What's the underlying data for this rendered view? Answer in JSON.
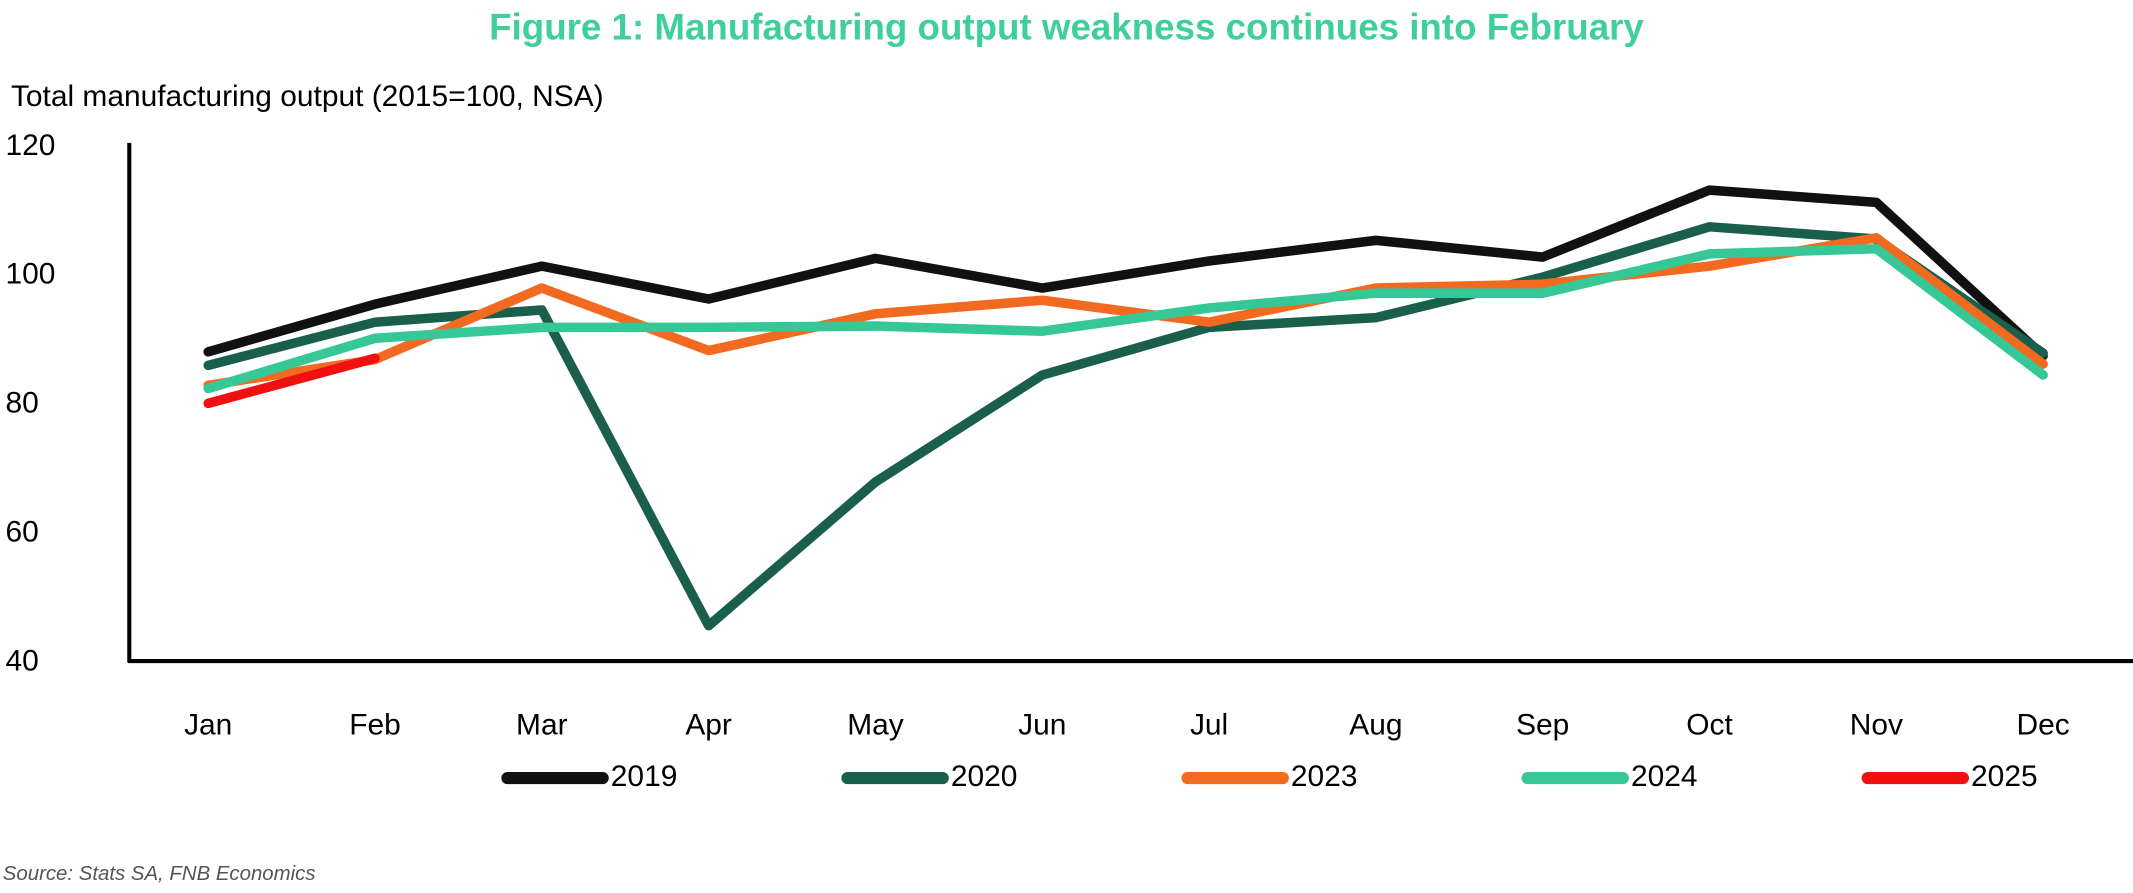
{
  "chart_data": {
    "type": "line",
    "title": "Figure 1: Manufacturing output weakness continues into February",
    "y_label": "Total manufacturing output (2015=100, NSA)",
    "source": "Source: Stats SA, FNB Economics",
    "categories": [
      "Jan",
      "Feb",
      "Mar",
      "Apr",
      "May",
      "Jun",
      "Jul",
      "Aug",
      "Sep",
      "Oct",
      "Nov",
      "Dec"
    ],
    "series": [
      {
        "name": "2019",
        "color": "#111111",
        "values": [
          88.2,
          95.6,
          101.5,
          96.4,
          102.7,
          98.1,
          102.3,
          105.5,
          102.9,
          113.3,
          111.4,
          87.6
        ]
      },
      {
        "name": "2020",
        "color": "#1a5e4c",
        "values": [
          86.1,
          92.8,
          94.7,
          45.7,
          68,
          84.6,
          92,
          93.5,
          99.8,
          107.6,
          105.7,
          88
        ]
      },
      {
        "name": "2023",
        "color": "#f26a1f",
        "values": [
          83,
          87,
          98.1,
          88.4,
          94.1,
          96.2,
          92.8,
          98.1,
          98.7,
          101.5,
          105.9,
          86.3
        ]
      },
      {
        "name": "2024",
        "color": "#35c896",
        "values": [
          82.5,
          90.3,
          92,
          92,
          92.2,
          91.4,
          95,
          97.3,
          97.3,
          103.4,
          104.2,
          84.6
        ]
      },
      {
        "name": "2025",
        "color": "#f01010",
        "values": [
          80.2,
          87.2,
          null,
          null,
          null,
          null,
          null,
          null,
          null,
          null,
          null,
          null
        ]
      }
    ],
    "ylim": [
      40,
      120
    ],
    "yticks": [
      40,
      60,
      80,
      100,
      120
    ],
    "grid": false,
    "legend": "bottom"
  }
}
